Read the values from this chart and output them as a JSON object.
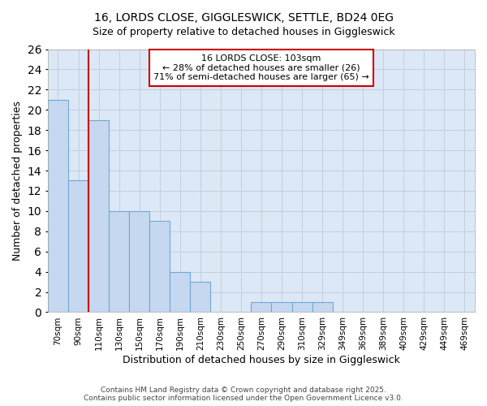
{
  "title_line1": "16, LORDS CLOSE, GIGGLESWICK, SETTLE, BD24 0EG",
  "title_line2": "Size of property relative to detached houses in Giggleswick",
  "xlabel": "Distribution of detached houses by size in Giggleswick",
  "ylabel": "Number of detached properties",
  "bar_labels": [
    "70sqm",
    "90sqm",
    "110sqm",
    "130sqm",
    "150sqm",
    "170sqm",
    "190sqm",
    "210sqm",
    "230sqm",
    "250sqm",
    "270sqm",
    "290sqm",
    "310sqm",
    "329sqm",
    "349sqm",
    "369sqm",
    "389sqm",
    "409sqm",
    "429sqm",
    "449sqm",
    "469sqm"
  ],
  "bar_values": [
    21,
    13,
    19,
    10,
    10,
    9,
    4,
    3,
    0,
    0,
    1,
    1,
    1,
    1,
    0,
    0,
    0,
    0,
    0,
    0,
    0
  ],
  "bar_color": "#c5d8ef",
  "bar_edge_color": "#6fa8d6",
  "bar_linewidth": 0.8,
  "vline_x": 1.5,
  "vline_color": "#cc0000",
  "vline_linewidth": 1.5,
  "annotation_text": "16 LORDS CLOSE: 103sqm\n← 28% of detached houses are smaller (26)\n71% of semi-detached houses are larger (65) →",
  "annotation_box_edgecolor": "#cc0000",
  "annotation_box_facecolor": "#ffffff",
  "annotation_fontsize": 8,
  "ylim": [
    0,
    26
  ],
  "yticks": [
    0,
    2,
    4,
    6,
    8,
    10,
    12,
    14,
    16,
    18,
    20,
    22,
    24,
    26
  ],
  "grid_color": "#c0d0e0",
  "plot_bg_color": "#dce8f5",
  "fig_bg_color": "#ffffff",
  "title_fontsize": 10,
  "subtitle_fontsize": 9,
  "xlabel_fontsize": 9,
  "ylabel_fontsize": 9,
  "tick_fontsize": 7.5,
  "footer_line1": "Contains HM Land Registry data © Crown copyright and database right 2025.",
  "footer_line2": "Contains public sector information licensed under the Open Government Licence v3.0."
}
